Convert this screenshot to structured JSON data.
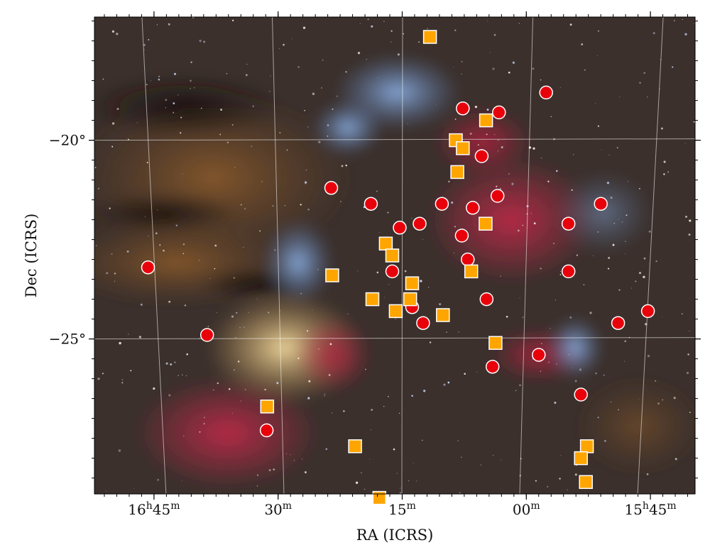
{
  "chart_data": {
    "type": "scatter",
    "title": "",
    "xlabel": "RA (ICRS)",
    "ylabel": "Dec (ICRS)",
    "x_unit": "minutes of RA",
    "xlim": [
      16.87,
      15.66
    ],
    "ylim": [
      -28.9,
      -16.9
    ],
    "grid": true,
    "legend": "none",
    "background": "astrophotograph of the Rho Ophiuchi / Antares region",
    "x_ticks": [
      {
        "value": 16.75,
        "hour": "16",
        "min": "45"
      },
      {
        "value": 16.5,
        "hour": "",
        "min": "30"
      },
      {
        "value": 16.25,
        "hour": "",
        "min": "15"
      },
      {
        "value": 16.0,
        "hour": "",
        "min": "00"
      },
      {
        "value": 15.75,
        "hour": "15",
        "min": "45"
      }
    ],
    "y_ticks": [
      {
        "value": -20,
        "label": "−20°"
      },
      {
        "value": -25,
        "label": "−25°"
      }
    ],
    "series": [
      {
        "marker": "circle",
        "color": "#e8000b",
        "points": [
          {
            "x": 16.762,
            "y": -23.2
          },
          {
            "x": 16.643,
            "y": -24.9
          },
          {
            "x": 16.523,
            "y": -27.3
          },
          {
            "x": 16.393,
            "y": -21.2
          },
          {
            "x": 16.313,
            "y": -21.6
          },
          {
            "x": 16.27,
            "y": -23.3
          },
          {
            "x": 16.255,
            "y": -22.2
          },
          {
            "x": 16.23,
            "y": -24.2
          },
          {
            "x": 16.215,
            "y": -22.1
          },
          {
            "x": 16.208,
            "y": -24.6
          },
          {
            "x": 16.17,
            "y": -21.6
          },
          {
            "x": 16.13,
            "y": -22.4
          },
          {
            "x": 16.128,
            "y": -19.2
          },
          {
            "x": 16.118,
            "y": -23.0
          },
          {
            "x": 16.108,
            "y": -21.7
          },
          {
            "x": 16.09,
            "y": -20.4
          },
          {
            "x": 16.08,
            "y": -24.0
          },
          {
            "x": 16.068,
            "y": -25.7
          },
          {
            "x": 16.058,
            "y": -21.4
          },
          {
            "x": 16.055,
            "y": -19.3
          },
          {
            "x": 15.975,
            "y": -25.4
          },
          {
            "x": 15.96,
            "y": -18.8
          },
          {
            "x": 15.915,
            "y": -22.1
          },
          {
            "x": 15.915,
            "y": -23.3
          },
          {
            "x": 15.89,
            "y": -26.4
          },
          {
            "x": 15.85,
            "y": -21.6
          },
          {
            "x": 15.815,
            "y": -24.6
          },
          {
            "x": 15.755,
            "y": -24.3
          }
        ]
      },
      {
        "marker": "square",
        "color": "#ffa500",
        "points": [
          {
            "x": 16.194,
            "y": -17.4
          },
          {
            "x": 16.391,
            "y": -23.4
          },
          {
            "x": 16.142,
            "y": -20.0
          },
          {
            "x": 16.128,
            "y": -20.2
          },
          {
            "x": 16.139,
            "y": -20.8
          },
          {
            "x": 16.081,
            "y": -19.5
          },
          {
            "x": 16.082,
            "y": -22.1
          },
          {
            "x": 16.283,
            "y": -22.6
          },
          {
            "x": 16.27,
            "y": -22.9
          },
          {
            "x": 16.31,
            "y": -24.0
          },
          {
            "x": 16.263,
            "y": -24.3
          },
          {
            "x": 16.23,
            "y": -23.6
          },
          {
            "x": 16.234,
            "y": -24.0
          },
          {
            "x": 16.168,
            "y": -24.4
          },
          {
            "x": 16.111,
            "y": -23.3
          },
          {
            "x": 16.062,
            "y": -25.1
          },
          {
            "x": 16.522,
            "y": -26.7
          },
          {
            "x": 16.345,
            "y": -27.7
          },
          {
            "x": 16.296,
            "y": -29.0
          },
          {
            "x": 15.878,
            "y": -27.7
          },
          {
            "x": 15.89,
            "y": -28.0
          },
          {
            "x": 15.88,
            "y": -28.6
          }
        ]
      }
    ]
  }
}
